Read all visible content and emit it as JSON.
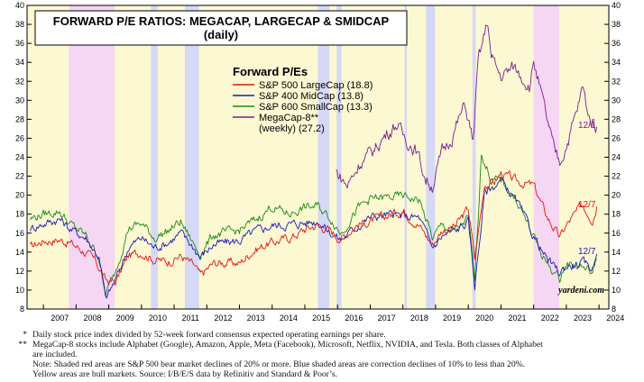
{
  "chart_data": {
    "type": "line",
    "title": "FORWARD P/E RATIOS: MEGACAP, LARGECAP & SMIDCAP",
    "subtitle": "(daily)",
    "legend_title": "Forward P/Es",
    "legend_placement": "top-center",
    "ylim": [
      8,
      40
    ],
    "y_ticks": [
      8,
      10,
      12,
      14,
      16,
      18,
      20,
      22,
      24,
      26,
      28,
      30,
      32,
      34,
      36,
      38,
      40
    ],
    "x_range": [
      2006.5,
      2024.3
    ],
    "x_ticks": [
      "2007",
      "2008",
      "2009",
      "2010",
      "2011",
      "2012",
      "2013",
      "2014",
      "2015",
      "2016",
      "2017",
      "2018",
      "2019",
      "2020",
      "2021",
      "2022",
      "2023",
      "2024"
    ],
    "watermark": "yardeni.com",
    "bull_color": "#fbf8d2",
    "bear_color": "#f5d6f3",
    "correction_color": "#d5d8f7",
    "bear_markets": [
      [
        2007.78,
        2009.18
      ],
      [
        2022.0,
        2022.78
      ]
    ],
    "corrections": [
      [
        2010.29,
        2010.5
      ],
      [
        2011.33,
        2011.76
      ],
      [
        2015.4,
        2015.75
      ],
      [
        2015.97,
        2016.12
      ],
      [
        2018.05,
        2018.12
      ],
      [
        2018.71,
        2018.98
      ],
      [
        2020.13,
        2020.23
      ]
    ],
    "series": [
      {
        "name": "S&P 500 LargeCap (18.8)",
        "color": "#e8140f",
        "end_label": "12/7",
        "x": [
          2006.6,
          2007.0,
          2007.5,
          2007.8,
          2008.2,
          2008.6,
          2008.9,
          2009.2,
          2009.6,
          2010.0,
          2010.4,
          2010.8,
          2011.2,
          2011.6,
          2011.8,
          2012.2,
          2012.6,
          2013.0,
          2013.4,
          2013.8,
          2014.2,
          2014.6,
          2015.0,
          2015.4,
          2015.8,
          2016.1,
          2016.6,
          2017.0,
          2017.5,
          2018.0,
          2018.5,
          2018.9,
          2019.2,
          2019.6,
          2020.0,
          2020.2,
          2020.5,
          2020.8,
          2021.0,
          2021.5,
          2022.0,
          2022.4,
          2022.8,
          2023.0,
          2023.5,
          2023.8,
          2023.93
        ],
        "values": [
          14.5,
          15.2,
          15.3,
          15.0,
          14.2,
          13.0,
          11.0,
          10.8,
          13.6,
          14.0,
          13.2,
          13.0,
          13.6,
          12.6,
          11.5,
          12.8,
          12.9,
          12.8,
          14.1,
          14.8,
          15.2,
          15.6,
          16.4,
          16.9,
          16.2,
          15.4,
          16.9,
          17.2,
          17.8,
          18.4,
          16.8,
          14.8,
          16.3,
          16.7,
          18.6,
          13.3,
          21.2,
          21.4,
          22.3,
          21.4,
          21.0,
          17.8,
          15.5,
          16.8,
          19.0,
          17.5,
          18.8
        ]
      },
      {
        "name": "S&P 400 MidCap (13.8)",
        "color": "#1a1ab3",
        "end_label": "12/7",
        "x": [
          2006.6,
          2007.0,
          2007.5,
          2007.8,
          2008.3,
          2008.7,
          2008.9,
          2009.2,
          2009.6,
          2010.0,
          2010.4,
          2010.8,
          2011.2,
          2011.6,
          2011.8,
          2012.2,
          2012.6,
          2013.0,
          2013.5,
          2014.0,
          2014.5,
          2015.0,
          2015.4,
          2015.8,
          2016.1,
          2016.6,
          2017.0,
          2017.5,
          2018.0,
          2018.5,
          2018.9,
          2019.2,
          2019.6,
          2020.0,
          2020.2,
          2020.5,
          2020.8,
          2021.0,
          2021.5,
          2022.0,
          2022.4,
          2022.8,
          2023.0,
          2023.5,
          2023.8,
          2023.93
        ],
        "values": [
          16.5,
          17.0,
          17.5,
          16.5,
          15.5,
          13.5,
          9.0,
          11.0,
          14.5,
          15.5,
          14.5,
          15.0,
          16.0,
          14.5,
          13.5,
          14.8,
          15.0,
          15.2,
          16.2,
          16.8,
          16.9,
          17.1,
          17.3,
          16.0,
          15.3,
          16.7,
          17.7,
          17.9,
          17.8,
          17.6,
          14.5,
          15.7,
          16.2,
          17.2,
          10.5,
          20.3,
          21.0,
          21.5,
          19.2,
          15.7,
          13.2,
          11.8,
          12.5,
          12.8,
          12.3,
          13.8
        ]
      },
      {
        "name": "S&P 600 SmallCap (13.3)",
        "color": "#1a8a12",
        "end_label": "",
        "x": [
          2006.6,
          2007.0,
          2007.5,
          2007.8,
          2008.3,
          2008.7,
          2008.9,
          2009.2,
          2009.6,
          2010.0,
          2010.4,
          2010.8,
          2011.2,
          2011.6,
          2011.8,
          2012.2,
          2012.6,
          2013.0,
          2013.5,
          2014.0,
          2014.5,
          2015.0,
          2015.4,
          2015.8,
          2016.1,
          2016.6,
          2017.0,
          2017.5,
          2018.0,
          2018.5,
          2018.9,
          2019.2,
          2019.6,
          2020.0,
          2020.2,
          2020.4,
          2020.7,
          2021.0,
          2021.5,
          2022.0,
          2022.4,
          2022.8,
          2023.0,
          2023.5,
          2023.8,
          2023.93
        ],
        "values": [
          17.5,
          18.0,
          18.3,
          17.0,
          15.7,
          13.5,
          9.5,
          12.0,
          16.5,
          17.0,
          15.5,
          16.2,
          17.2,
          14.8,
          13.8,
          15.8,
          16.0,
          16.3,
          17.4,
          18.8,
          18.0,
          18.7,
          18.8,
          17.5,
          16.0,
          18.5,
          19.6,
          19.7,
          19.9,
          19.5,
          15.5,
          16.8,
          16.2,
          17.6,
          10.8,
          24.5,
          21.6,
          21.5,
          19.4,
          15.5,
          12.8,
          11.2,
          12.8,
          12.5,
          11.8,
          13.3
        ]
      },
      {
        "name": "MegaCap-8**",
        "name_line2": "(weekly) (27.2)",
        "color": "#7d1d8c",
        "end_label": "12/1",
        "x": [
          2015.95,
          2016.3,
          2016.7,
          2017.0,
          2017.5,
          2017.8,
          2018.0,
          2018.4,
          2018.7,
          2018.9,
          2019.2,
          2019.5,
          2019.9,
          2020.15,
          2020.3,
          2020.6,
          2020.7,
          2021.0,
          2021.4,
          2021.9,
          2022.0,
          2022.3,
          2022.6,
          2022.8,
          2023.0,
          2023.3,
          2023.5,
          2023.7,
          2023.93
        ],
        "values": [
          22.5,
          21.0,
          23.5,
          24.3,
          26.5,
          27.5,
          26.3,
          24.8,
          21.7,
          21.0,
          24.5,
          26.2,
          29.5,
          25.6,
          34.0,
          38.4,
          34.5,
          32.5,
          33.5,
          31.5,
          34.2,
          29.5,
          25.0,
          23.5,
          25.3,
          28.5,
          31.3,
          28.2,
          27.2
        ]
      }
    ]
  },
  "footnotes": [
    {
      "mark": "*",
      "text": "Daily stock price index divided by 52-week forward consensus expected operating earnings per share."
    },
    {
      "mark": "**",
      "text": "MegaCap-8 stocks include Alphabet (Google), Amazon, Apple, Meta (Facebook), Microsoft, Netflix, NVIDIA, and Tesla. Both classes of Alphabet"
    },
    {
      "mark": "",
      "text": "are included."
    },
    {
      "mark": "",
      "text": "Note: Shaded red areas are S&P 500 bear market declines of 20% or more.  Blue shaded areas are correction declines of 10% to less than 20%."
    },
    {
      "mark": "",
      "text": "Yellow areas are bull markets. Source: I/B/E/S data by Refinitiv and Standard & Poor’s."
    }
  ]
}
